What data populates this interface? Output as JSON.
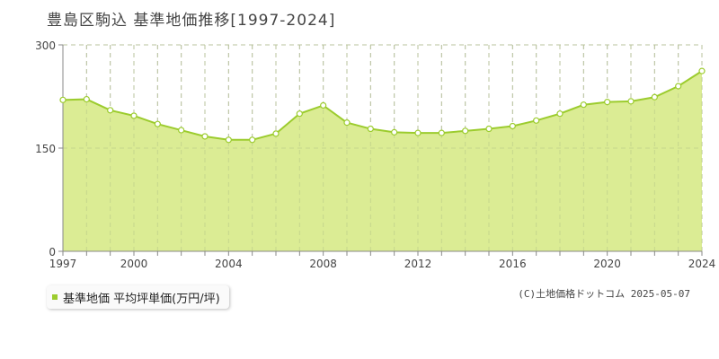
{
  "title": "豊島区駒込 基準地価推移[1997-2024]",
  "legend": {
    "label": "基準地価 平均坪単価(万円/坪)"
  },
  "copyright": "(C)土地価格ドットコム 2025-05-07",
  "colors": {
    "fill": "#dbec94",
    "line": "#9ccc2e",
    "point_fill": "#ffffff",
    "grid": "#bbbbbb"
  },
  "chart_data": {
    "type": "area",
    "x": [
      1997,
      1998,
      1999,
      2000,
      2001,
      2002,
      2003,
      2004,
      2005,
      2006,
      2007,
      2008,
      2009,
      2010,
      2011,
      2012,
      2013,
      2014,
      2015,
      2016,
      2017,
      2018,
      2019,
      2020,
      2021,
      2022,
      2023,
      2024
    ],
    "series": [
      {
        "name": "基準地価 平均坪単価(万円/坪)",
        "values": [
          220,
          221,
          205,
          197,
          185,
          176,
          167,
          162,
          162,
          171,
          200,
          212,
          187,
          178,
          173,
          172,
          172,
          175,
          178,
          182,
          190,
          200,
          213,
          217,
          218,
          224,
          240,
          262
        ]
      }
    ],
    "xticks": [
      1997,
      2000,
      2004,
      2008,
      2012,
      2016,
      2020,
      2024
    ],
    "yticks": [
      0,
      150,
      300
    ],
    "ylim": [
      0,
      300
    ],
    "grid": true
  }
}
